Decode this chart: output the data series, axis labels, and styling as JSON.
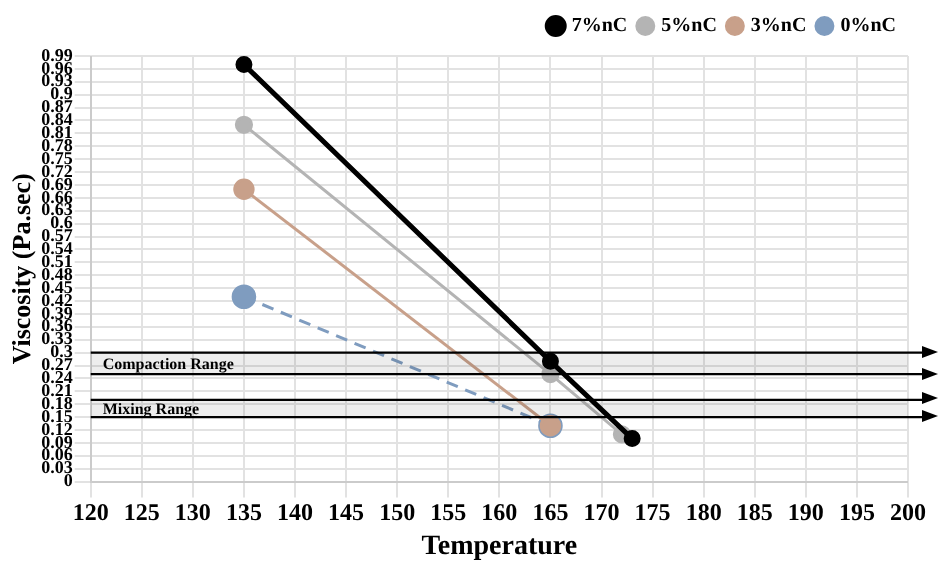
{
  "chart_data": {
    "type": "line",
    "xlabel": "Temperature",
    "ylabel": "Viscosity (Pa.sec)",
    "xlim": [
      120,
      200
    ],
    "xticks": [
      120,
      125,
      130,
      135,
      140,
      145,
      150,
      155,
      160,
      165,
      170,
      175,
      180,
      185,
      190,
      195,
      200
    ],
    "ylim": [
      0,
      0.99
    ],
    "yticks": [
      0,
      0.03,
      0.06,
      0.09,
      0.12,
      0.15,
      0.18,
      0.21,
      0.24,
      0.27,
      0.3,
      0.33,
      0.36,
      0.39,
      0.42,
      0.45,
      0.48,
      0.51,
      0.54,
      0.57,
      0.6,
      0.63,
      0.66,
      0.69,
      0.72,
      0.75,
      0.78,
      0.81,
      0.84,
      0.87,
      0.9,
      0.93,
      0.96,
      0.99
    ],
    "grid": true,
    "legend": "top right",
    "marker": "circle",
    "series": [
      {
        "name": "0%nC",
        "color": "#7f9cbf",
        "line_style": "dashed",
        "x": [
          135,
          165
        ],
        "values": [
          0.43,
          0.13
        ]
      },
      {
        "name": "3%nC",
        "color": "#c8a08a",
        "x": [
          135,
          165
        ],
        "values": [
          0.68,
          0.13
        ]
      },
      {
        "name": "5%nC",
        "color": "#b4b4b4",
        "x": [
          135,
          165,
          172
        ],
        "values": [
          0.83,
          0.25,
          0.11
        ]
      },
      {
        "name": "7%nC",
        "color": "#000000",
        "x": [
          135,
          165,
          173
        ],
        "values": [
          0.97,
          0.28,
          0.1
        ]
      }
    ],
    "bands": [
      {
        "axis": "y",
        "from": 0.25,
        "to": 0.3,
        "label": "Compaction Range",
        "color": "#000000"
      },
      {
        "axis": "y",
        "from": 0.15,
        "to": 0.19,
        "label": "Mixing Range",
        "color": "#000000"
      }
    ]
  }
}
